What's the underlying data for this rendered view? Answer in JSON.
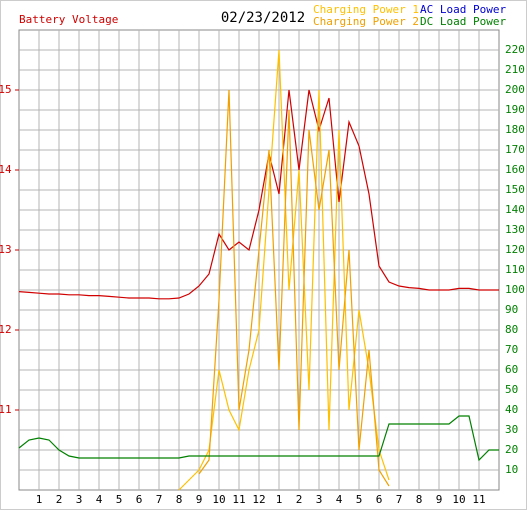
{
  "chart_data": {
    "type": "line",
    "title": "Battery Voltage",
    "subtitle": "02/23/2012",
    "x": [
      0,
      0.5,
      1,
      1.5,
      2,
      2.5,
      3,
      3.5,
      4,
      4.5,
      5,
      5.5,
      6,
      6.5,
      7,
      7.5,
      8,
      8.5,
      9,
      9.5,
      10,
      10.5,
      11,
      11.5,
      12,
      12.5,
      13,
      13.5,
      14,
      14.5,
      15,
      15.5,
      16,
      16.5,
      17,
      17.5,
      18,
      18.5,
      19,
      19.5,
      20,
      20.5,
      21,
      21.5,
      22,
      22.5,
      23,
      23.5,
      24
    ],
    "xlim": [
      0,
      24
    ],
    "xticks": [
      {
        "value": 1,
        "label": "1"
      },
      {
        "value": 2,
        "label": "2"
      },
      {
        "value": 3,
        "label": "3"
      },
      {
        "value": 4,
        "label": "4"
      },
      {
        "value": 5,
        "label": "5"
      },
      {
        "value": 6,
        "label": "6"
      },
      {
        "value": 7,
        "label": "7"
      },
      {
        "value": 8,
        "label": "8"
      },
      {
        "value": 9,
        "label": "9"
      },
      {
        "value": 10,
        "label": "10"
      },
      {
        "value": 11,
        "label": "11"
      },
      {
        "value": 12,
        "label": "12"
      },
      {
        "value": 13,
        "label": "1"
      },
      {
        "value": 14,
        "label": "2"
      },
      {
        "value": 15,
        "label": "3"
      },
      {
        "value": 16,
        "label": "4"
      },
      {
        "value": 17,
        "label": "5"
      },
      {
        "value": 18,
        "label": "6"
      },
      {
        "value": 19,
        "label": "7"
      },
      {
        "value": 20,
        "label": "8"
      },
      {
        "value": 21,
        "label": "9"
      },
      {
        "value": 22,
        "label": "10"
      },
      {
        "value": 23,
        "label": "11"
      }
    ],
    "ylim": [
      10,
      15.75
    ],
    "yticks": [
      11,
      12,
      13,
      14,
      15
    ],
    "y2lim": [
      0,
      230
    ],
    "y2ticks": [
      10,
      20,
      30,
      40,
      50,
      60,
      70,
      80,
      90,
      100,
      110,
      120,
      130,
      140,
      150,
      160,
      170,
      180,
      190,
      200,
      210,
      220
    ],
    "grid": true,
    "series": [
      {
        "name": "Battery Voltage",
        "color": "#d00000",
        "axis": "y",
        "values": [
          12.48,
          12.47,
          12.46,
          12.45,
          12.45,
          12.44,
          12.44,
          12.43,
          12.43,
          12.42,
          12.41,
          12.4,
          12.4,
          12.4,
          12.39,
          12.39,
          12.4,
          12.45,
          12.55,
          12.7,
          13.2,
          13.0,
          13.1,
          13.0,
          13.5,
          14.2,
          13.7,
          15.0,
          14.0,
          15.0,
          14.5,
          14.9,
          13.6,
          14.6,
          14.3,
          13.7,
          12.8,
          12.6,
          12.55,
          12.53,
          12.52,
          12.5,
          12.5,
          12.5,
          12.52,
          12.52,
          12.5,
          12.5,
          12.5
        ]
      },
      {
        "name": "Charging Power 1",
        "color": "#ffc000",
        "axis": "y2",
        "values": [
          null,
          null,
          null,
          null,
          null,
          null,
          null,
          null,
          null,
          null,
          null,
          null,
          null,
          null,
          null,
          null,
          0,
          5,
          10,
          20,
          60,
          40,
          30,
          60,
          80,
          150,
          220,
          100,
          160,
          50,
          200,
          30,
          180,
          40,
          90,
          60,
          20,
          5,
          null,
          null,
          null,
          null,
          null,
          null,
          null,
          null,
          null,
          null,
          null
        ]
      },
      {
        "name": "Charging Power 2",
        "color": "#f0a000",
        "axis": "y2",
        "values": [
          null,
          null,
          null,
          null,
          null,
          null,
          null,
          null,
          null,
          null,
          null,
          null,
          null,
          null,
          null,
          null,
          null,
          null,
          8,
          15,
          95,
          200,
          40,
          70,
          120,
          170,
          60,
          190,
          30,
          180,
          140,
          170,
          60,
          120,
          20,
          70,
          10,
          2,
          null,
          null,
          null,
          null,
          null,
          null,
          null,
          null,
          null,
          null,
          null
        ]
      },
      {
        "name": "AC Load Power",
        "color": "#0000d0",
        "axis": "y2",
        "values": [
          null,
          null,
          null,
          null,
          null,
          null,
          null,
          null,
          null,
          null,
          null,
          null,
          null,
          null,
          null,
          null,
          null,
          null,
          null,
          null,
          null,
          null,
          null,
          null,
          null,
          null,
          null,
          null,
          null,
          null,
          null,
          null,
          null,
          null,
          null,
          null,
          null,
          null,
          null,
          null,
          null,
          null,
          null,
          null,
          null,
          null,
          null,
          null,
          null
        ]
      },
      {
        "name": "DC Load Power",
        "color": "#008000",
        "axis": "y2",
        "values": [
          21,
          25,
          26,
          25,
          20,
          17,
          16,
          16,
          16,
          16,
          16,
          16,
          16,
          16,
          16,
          16,
          16,
          17,
          17,
          17,
          17,
          17,
          17,
          17,
          17,
          17,
          17,
          17,
          17,
          17,
          17,
          17,
          17,
          17,
          17,
          17,
          17,
          33,
          33,
          33,
          33,
          33,
          33,
          33,
          37,
          37,
          15,
          20,
          20
        ]
      }
    ]
  }
}
